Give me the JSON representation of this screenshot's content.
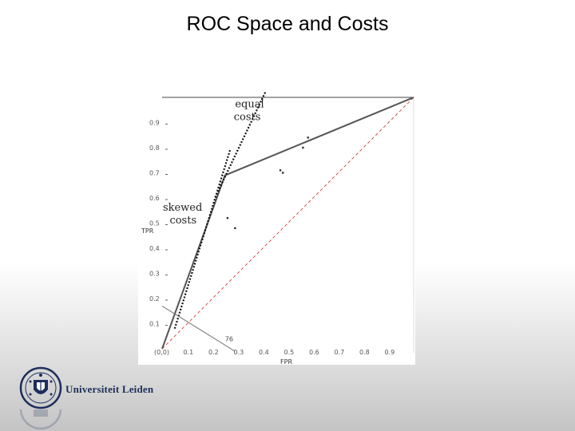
{
  "slide": {
    "title": "ROC Space and Costs",
    "logo_text": "Universiteit Leiden"
  },
  "chart_data": {
    "type": "scatter",
    "x_label": "FPR",
    "y_label": "TPR",
    "x_ticks": [
      "(0,0)",
      "0.1",
      "0.2",
      "0.3",
      "0.4",
      "0.5",
      "0.6",
      "0.7",
      "0.8",
      "0.9"
    ],
    "y_ticks": [
      "0.1",
      "0.2",
      "0.3",
      "0.4",
      "0.5",
      "0.6",
      "0.7",
      "0.8",
      "0.9"
    ],
    "xlim": [
      0,
      1
    ],
    "ylim": [
      0,
      1
    ],
    "grid": false,
    "points": [
      {
        "x": 0.26,
        "y": 0.52
      },
      {
        "x": 0.29,
        "y": 0.48
      },
      {
        "x": 0.47,
        "y": 0.71
      },
      {
        "x": 0.48,
        "y": 0.7
      },
      {
        "x": 0.56,
        "y": 0.8
      },
      {
        "x": 0.58,
        "y": 0.84
      }
    ],
    "convex_hull": [
      {
        "x": 0,
        "y": 0
      },
      {
        "x": 0.25,
        "y": 0.69
      },
      {
        "x": 1,
        "y": 1
      }
    ],
    "diagonal": [
      {
        "x": 0,
        "y": 0
      },
      {
        "x": 1,
        "y": 1
      }
    ],
    "iso_performance_lines": [
      {
        "label": "equal costs",
        "from": {
          "x": 0.41,
          "y": 1.02
        },
        "to": {
          "x": 0.21,
          "y": 0.6
        }
      },
      {
        "label": "skewed costs",
        "from": {
          "x": 0.27,
          "y": 0.79
        },
        "to": {
          "x": 0.05,
          "y": 0.08
        }
      },
      {
        "label": "76",
        "from": {
          "x": 0,
          "y": 0.17
        },
        "to": {
          "x": 0.29,
          "y": -0.01
        }
      }
    ],
    "annotations": [
      "equal costs",
      "skewed costs",
      "76"
    ],
    "colors": {
      "hull": "#555555",
      "diagonal": "#d9534f",
      "iso_lines": "#111111",
      "points": "#333333"
    }
  }
}
